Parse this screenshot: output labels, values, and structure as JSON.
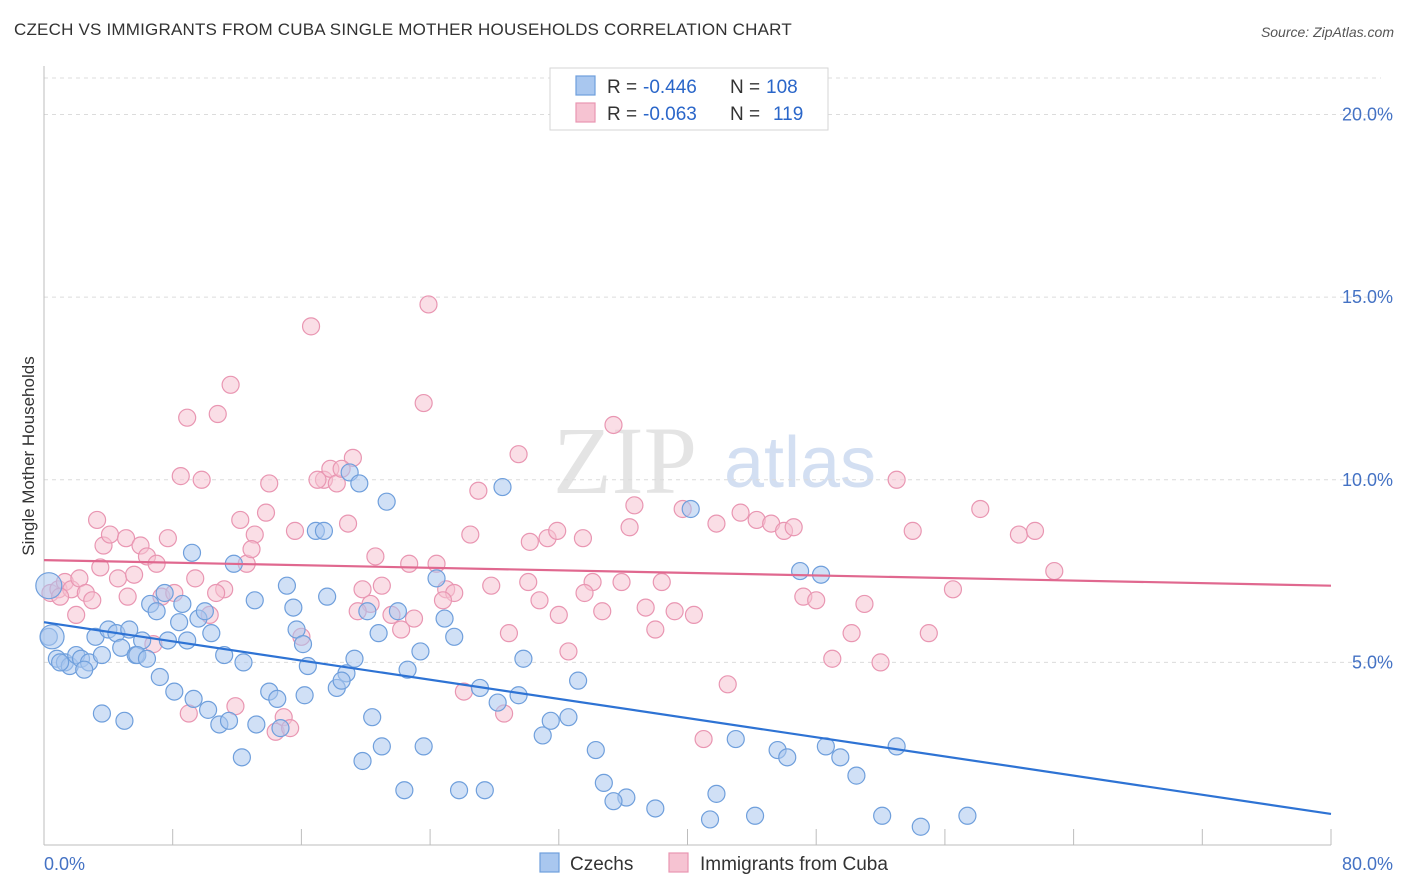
{
  "title": "CZECH VS IMMIGRANTS FROM CUBA SINGLE MOTHER HOUSEHOLDS CORRELATION CHART",
  "source": "Source: ZipAtlas.com",
  "watermark": {
    "zip": "ZIP",
    "atlas": "atlas"
  },
  "colors": {
    "blue_fill": "#a9c7ef",
    "blue_stroke": "#6f9fdc",
    "blue_line": "#2e73d4",
    "pink_fill": "#f6c3d2",
    "pink_stroke": "#e996b2",
    "pink_line": "#e0688f",
    "grid": "#dcdcdc",
    "axis_text": "#4472c4"
  },
  "legend": {
    "r_label": "R =",
    "n_label": "N =",
    "rows": [
      {
        "r": "-0.446",
        "n": "108"
      },
      {
        "r": "-0.063",
        "n": "119"
      }
    ]
  },
  "bottom_legend": [
    "Czechs",
    "Immigrants from Cuba"
  ],
  "chart_data": {
    "type": "scatter",
    "title": "CZECH VS IMMIGRANTS FROM CUBA SINGLE MOTHER HOUSEHOLDS CORRELATION CHART",
    "xlabel": "",
    "ylabel": "Single Mother Households",
    "xlim": [
      0,
      80
    ],
    "ylim": [
      0,
      21
    ],
    "x_tick_labels": [
      "0.0%",
      "80.0%"
    ],
    "y_ticks": [
      5,
      10,
      15,
      20
    ],
    "y_tick_labels": [
      "5.0%",
      "10.0%",
      "15.0%",
      "20.0%"
    ],
    "series": [
      {
        "name": "Czechs",
        "r": -0.446,
        "n": 108,
        "trend": {
          "x": [
            0,
            80
          ],
          "y": [
            6.1,
            0.85
          ]
        },
        "points": [
          [
            0.3,
            5.7
          ],
          [
            0.8,
            5.1
          ],
          [
            1.3,
            5.0
          ],
          [
            1.6,
            4.9
          ],
          [
            2.0,
            5.2
          ],
          [
            2.3,
            5.1
          ],
          [
            2.8,
            5.0
          ],
          [
            3.2,
            5.7
          ],
          [
            3.6,
            5.2
          ],
          [
            4.0,
            5.9
          ],
          [
            4.5,
            5.8
          ],
          [
            4.8,
            5.4
          ],
          [
            5.3,
            5.9
          ],
          [
            5.7,
            5.2
          ],
          [
            6.1,
            5.6
          ],
          [
            6.6,
            6.6
          ],
          [
            7.0,
            6.4
          ],
          [
            7.5,
            6.9
          ],
          [
            7.7,
            5.6
          ],
          [
            8.4,
            6.1
          ],
          [
            8.6,
            6.6
          ],
          [
            8.9,
            5.6
          ],
          [
            9.2,
            8.0
          ],
          [
            9.6,
            6.2
          ],
          [
            10.0,
            6.4
          ],
          [
            10.4,
            5.8
          ],
          [
            11.2,
            5.2
          ],
          [
            11.8,
            7.7
          ],
          [
            12.4,
            5.0
          ],
          [
            13.1,
            6.7
          ],
          [
            14.0,
            4.2
          ],
          [
            14.5,
            4.0
          ],
          [
            15.1,
            7.1
          ],
          [
            15.7,
            5.9
          ],
          [
            16.1,
            5.5
          ],
          [
            16.4,
            4.9
          ],
          [
            16.9,
            8.6
          ],
          [
            17.6,
            6.8
          ],
          [
            18.2,
            4.3
          ],
          [
            18.8,
            4.7
          ],
          [
            19.0,
            10.2
          ],
          [
            19.6,
            9.9
          ],
          [
            20.1,
            6.4
          ],
          [
            20.8,
            5.8
          ],
          [
            21.3,
            9.4
          ],
          [
            22.0,
            6.4
          ],
          [
            22.6,
            4.8
          ],
          [
            23.4,
            5.3
          ],
          [
            24.4,
            7.3
          ],
          [
            24.9,
            6.2
          ],
          [
            25.5,
            5.7
          ],
          [
            27.1,
            4.3
          ],
          [
            28.2,
            3.9
          ],
          [
            28.5,
            9.8
          ],
          [
            29.5,
            4.1
          ],
          [
            31.0,
            3.0
          ],
          [
            31.5,
            3.4
          ],
          [
            33.2,
            4.5
          ],
          [
            34.3,
            2.6
          ],
          [
            34.8,
            1.7
          ],
          [
            36.2,
            1.3
          ],
          [
            38.0,
            1.0
          ],
          [
            40.2,
            9.2
          ],
          [
            41.4,
            0.7
          ],
          [
            41.8,
            1.4
          ],
          [
            43.0,
            2.9
          ],
          [
            44.2,
            0.8
          ],
          [
            45.6,
            2.6
          ],
          [
            46.2,
            2.4
          ],
          [
            47.0,
            7.5
          ],
          [
            48.3,
            7.4
          ],
          [
            48.6,
            2.7
          ],
          [
            49.5,
            2.4
          ],
          [
            50.5,
            1.9
          ],
          [
            52.1,
            0.8
          ],
          [
            53.0,
            2.7
          ],
          [
            54.5,
            0.5
          ],
          [
            57.4,
            0.8
          ],
          [
            1.0,
            5.0
          ],
          [
            2.5,
            4.8
          ],
          [
            3.6,
            3.6
          ],
          [
            5.0,
            3.4
          ],
          [
            5.8,
            5.2
          ],
          [
            6.4,
            5.1
          ],
          [
            7.2,
            4.6
          ],
          [
            8.1,
            4.2
          ],
          [
            9.3,
            4.0
          ],
          [
            10.2,
            3.7
          ],
          [
            10.9,
            3.3
          ],
          [
            11.5,
            3.4
          ],
          [
            12.3,
            2.4
          ],
          [
            13.2,
            3.3
          ],
          [
            14.7,
            3.2
          ],
          [
            15.5,
            6.5
          ],
          [
            16.2,
            4.1
          ],
          [
            17.4,
            8.6
          ],
          [
            18.5,
            4.5
          ],
          [
            19.3,
            5.1
          ],
          [
            19.8,
            2.3
          ],
          [
            20.4,
            3.5
          ],
          [
            21.0,
            2.7
          ],
          [
            22.4,
            1.5
          ],
          [
            23.6,
            2.7
          ],
          [
            25.8,
            1.5
          ],
          [
            27.4,
            1.5
          ],
          [
            29.8,
            5.1
          ],
          [
            32.6,
            3.5
          ],
          [
            35.4,
            1.2
          ]
        ]
      },
      {
        "name": "Immigrants from Cuba",
        "r": -0.063,
        "n": 119,
        "trend": {
          "x": [
            0,
            80
          ],
          "y": [
            7.8,
            7.1
          ]
        },
        "points": [
          [
            0.4,
            6.9
          ],
          [
            0.9,
            7.0
          ],
          [
            1.3,
            7.2
          ],
          [
            1.7,
            7.0
          ],
          [
            2.2,
            7.3
          ],
          [
            2.6,
            6.9
          ],
          [
            3.0,
            6.7
          ],
          [
            3.3,
            8.9
          ],
          [
            3.7,
            8.2
          ],
          [
            4.1,
            8.5
          ],
          [
            4.6,
            7.3
          ],
          [
            5.1,
            8.4
          ],
          [
            5.6,
            7.4
          ],
          [
            6.0,
            8.2
          ],
          [
            6.4,
            7.9
          ],
          [
            6.8,
            5.5
          ],
          [
            7.3,
            6.8
          ],
          [
            7.7,
            8.4
          ],
          [
            8.1,
            6.9
          ],
          [
            8.5,
            10.1
          ],
          [
            8.9,
            11.7
          ],
          [
            9.4,
            7.3
          ],
          [
            9.8,
            10.0
          ],
          [
            10.3,
            6.3
          ],
          [
            10.8,
            11.8
          ],
          [
            11.2,
            7.0
          ],
          [
            11.6,
            12.6
          ],
          [
            12.2,
            8.9
          ],
          [
            12.6,
            7.7
          ],
          [
            13.1,
            8.5
          ],
          [
            13.8,
            9.1
          ],
          [
            14.4,
            3.1
          ],
          [
            14.9,
            3.5
          ],
          [
            15.3,
            3.2
          ],
          [
            16.0,
            5.7
          ],
          [
            16.6,
            14.2
          ],
          [
            17.4,
            10.0
          ],
          [
            17.8,
            10.3
          ],
          [
            18.2,
            9.9
          ],
          [
            18.9,
            8.8
          ],
          [
            19.2,
            10.6
          ],
          [
            19.8,
            7.0
          ],
          [
            20.3,
            6.6
          ],
          [
            21.0,
            7.1
          ],
          [
            21.6,
            6.3
          ],
          [
            22.2,
            5.9
          ],
          [
            23.0,
            6.2
          ],
          [
            23.6,
            12.1
          ],
          [
            23.9,
            14.8
          ],
          [
            24.4,
            7.7
          ],
          [
            25.0,
            7.0
          ],
          [
            25.5,
            6.9
          ],
          [
            26.1,
            4.2
          ],
          [
            27.0,
            9.7
          ],
          [
            27.8,
            7.1
          ],
          [
            28.6,
            3.6
          ],
          [
            29.5,
            10.7
          ],
          [
            30.2,
            8.3
          ],
          [
            30.8,
            6.7
          ],
          [
            31.3,
            8.4
          ],
          [
            31.9,
            8.6
          ],
          [
            32.6,
            5.3
          ],
          [
            33.5,
            8.4
          ],
          [
            34.1,
            7.2
          ],
          [
            34.7,
            6.4
          ],
          [
            35.4,
            11.5
          ],
          [
            35.9,
            7.2
          ],
          [
            36.7,
            9.3
          ],
          [
            37.4,
            6.5
          ],
          [
            38.0,
            5.9
          ],
          [
            38.4,
            7.2
          ],
          [
            39.2,
            6.4
          ],
          [
            39.7,
            9.2
          ],
          [
            40.4,
            6.3
          ],
          [
            41.0,
            2.9
          ],
          [
            41.8,
            8.8
          ],
          [
            42.5,
            4.4
          ],
          [
            43.3,
            9.1
          ],
          [
            44.3,
            8.9
          ],
          [
            45.2,
            8.8
          ],
          [
            46.0,
            8.6
          ],
          [
            46.6,
            8.7
          ],
          [
            47.2,
            6.8
          ],
          [
            48.0,
            6.7
          ],
          [
            49.0,
            5.1
          ],
          [
            50.2,
            5.8
          ],
          [
            51.0,
            6.6
          ],
          [
            52.0,
            5.0
          ],
          [
            53.0,
            10.0
          ],
          [
            54.0,
            8.6
          ],
          [
            55.0,
            5.8
          ],
          [
            56.5,
            7.0
          ],
          [
            58.2,
            9.2
          ],
          [
            60.6,
            8.5
          ],
          [
            61.6,
            8.6
          ],
          [
            62.8,
            7.5
          ],
          [
            1.0,
            6.8
          ],
          [
            2.0,
            6.3
          ],
          [
            3.5,
            7.6
          ],
          [
            5.2,
            6.8
          ],
          [
            7.0,
            7.7
          ],
          [
            9.0,
            3.6
          ],
          [
            10.7,
            6.9
          ],
          [
            11.9,
            3.8
          ],
          [
            12.9,
            8.1
          ],
          [
            14.0,
            9.9
          ],
          [
            15.6,
            8.6
          ],
          [
            17.0,
            10.0
          ],
          [
            18.5,
            10.3
          ],
          [
            19.5,
            6.4
          ],
          [
            20.6,
            7.9
          ],
          [
            22.7,
            7.7
          ],
          [
            24.8,
            6.7
          ],
          [
            26.5,
            8.5
          ],
          [
            28.9,
            5.8
          ],
          [
            30.1,
            7.2
          ],
          [
            32.0,
            6.3
          ],
          [
            33.6,
            6.9
          ],
          [
            36.4,
            8.7
          ]
        ]
      }
    ]
  }
}
